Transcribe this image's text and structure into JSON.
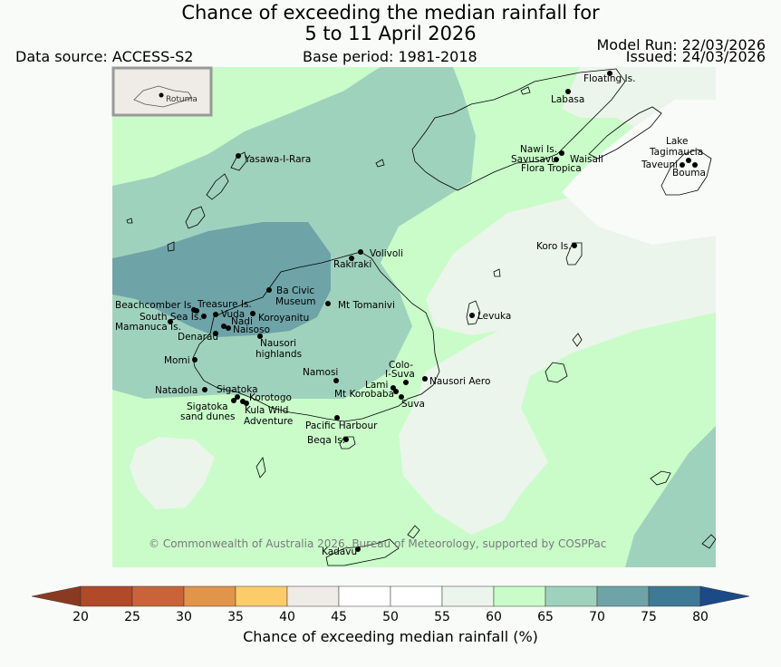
{
  "header": {
    "title_line1": "Chance of exceeding the median rainfall for",
    "title_line2": "5 to 11 April 2026",
    "data_source": "Data source: ACCESS-S2",
    "base_period": "Base period: 1981-2018",
    "model_run": "Model Run: 22/03/2026",
    "issued": "Issued: 24/03/2026"
  },
  "map": {
    "copyright": "© Commonwealth of Australia 2026, Bureau of Meteorology, supported by COSPPac",
    "inset_label": "Rotuma",
    "places": [
      {
        "name": "Floating Is."
      },
      {
        "name": "Labasa"
      },
      {
        "name": "Nawi Is."
      },
      {
        "name": "Savusavu"
      },
      {
        "name": "Waisali"
      },
      {
        "name": "Flora Tropica"
      },
      {
        "name": "Lake"
      },
      {
        "name": "Tagimaucia"
      },
      {
        "name": "Taveuni"
      },
      {
        "name": "Bouma"
      },
      {
        "name": "Yasawa-I-Rara"
      },
      {
        "name": "Koro Is."
      },
      {
        "name": "Volivoli"
      },
      {
        "name": "Rakiraki"
      },
      {
        "name": "Ba Civic"
      },
      {
        "name": "Museum"
      },
      {
        "name": "Mt Tomanivi"
      },
      {
        "name": "Beachcomber Is."
      },
      {
        "name": "Treasure Is."
      },
      {
        "name": "South Sea Is."
      },
      {
        "name": "Vuda"
      },
      {
        "name": "Koroyanitu"
      },
      {
        "name": "Mamanuca Is."
      },
      {
        "name": "Nadi"
      },
      {
        "name": "Naisoso"
      },
      {
        "name": "Denarau"
      },
      {
        "name": "Nausori"
      },
      {
        "name": "highlands"
      },
      {
        "name": "Levuka"
      },
      {
        "name": "Momi"
      },
      {
        "name": "Colo-"
      },
      {
        "name": "I-Suva"
      },
      {
        "name": "Namosi"
      },
      {
        "name": "Nausori Aero"
      },
      {
        "name": "Lami"
      },
      {
        "name": "Mt Korobaba"
      },
      {
        "name": "Suva"
      },
      {
        "name": "Natadola"
      },
      {
        "name": "Sigatoka"
      },
      {
        "name": "Korotogo"
      },
      {
        "name": "Sigatoka"
      },
      {
        "name": "sand dunes"
      },
      {
        "name": "Kula Wild"
      },
      {
        "name": "Adventure"
      },
      {
        "name": "Pacific Harbour"
      },
      {
        "name": "Beqa Is."
      },
      {
        "name": "Kadavu"
      }
    ]
  },
  "colorbar": {
    "label": "Chance of exceeding median rainfall (%)",
    "ticks": [
      "20",
      "25",
      "30",
      "35",
      "40",
      "45",
      "50",
      "55",
      "60",
      "65",
      "70",
      "75",
      "80"
    ],
    "colors": {
      "under": "#8a3a20",
      "c20_25": "#b04a28",
      "c25_30": "#c9643a",
      "c30_35": "#e0954a",
      "c35_40": "#fdcc6a",
      "c40_45": "#efebe6",
      "c45_50": "#ffffff",
      "c50_55": "#ffffff",
      "c55_60": "#ebf5eb",
      "c60_65": "#c9fcc9",
      "c65_70": "#9fd2bd",
      "c70_75": "#6ea4a8",
      "c75_80": "#3e7a96",
      "over": "#1b4a88"
    }
  }
}
